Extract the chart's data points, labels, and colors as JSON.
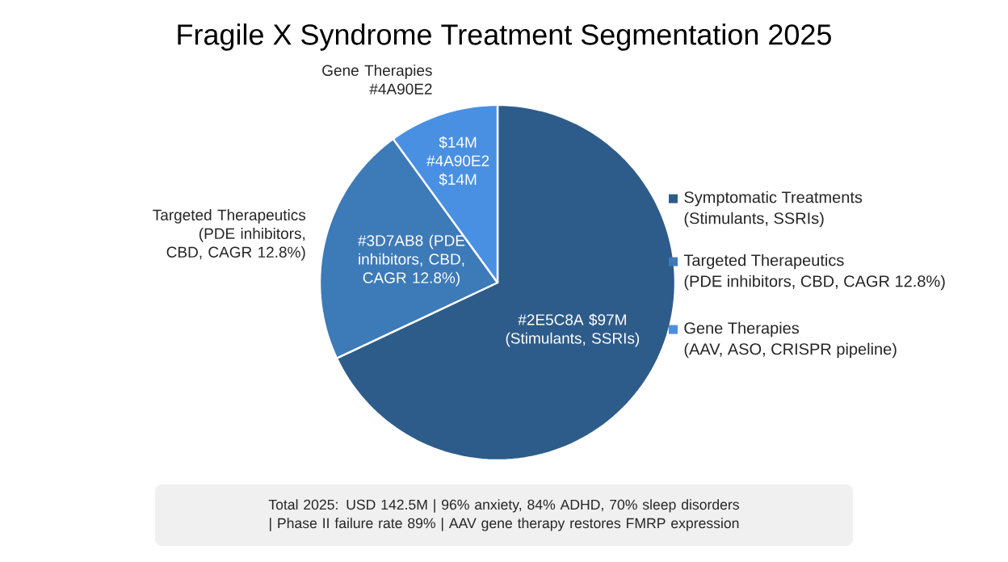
{
  "chart_data": {
    "type": "pie",
    "title": "Fragile X Syndrome Treatment Segmentation 2025",
    "categories": [
      "Symptomatic Treatments",
      "Targeted Therapeutics",
      "Gene Therapies"
    ],
    "values": [
      68,
      22,
      10
    ],
    "colors": [
      "#2e5c8a",
      "#3d7ab8",
      "#4a90e2"
    ],
    "legend": "right",
    "annotations": [
      "(Stimulants, SSRIs)",
      "(PDE inhibitors, CBD, CAGR 12.8%)",
      "(AAV, ASO, CRISPR pipeline)",
      "#2E5C8A $97M (Stimulants, SSRIs)",
      "#3D7AB8 (PDE inhibitors, CBD, CAGR 12.8%)",
      "$14M #4A90E2 $14M",
      "Targeted Therapeutics (PDE inhibitors, CBD, CAGR 12.8%)",
      "Gene Therapies #4A90E2",
      "Total 2025: USD 142.5M | 96% anxiety, 84% ADHD, 70% sleep disorders | Phase II failure rate 89% | AAV gene therapy restores FMRP expression"
    ]
  }
}
